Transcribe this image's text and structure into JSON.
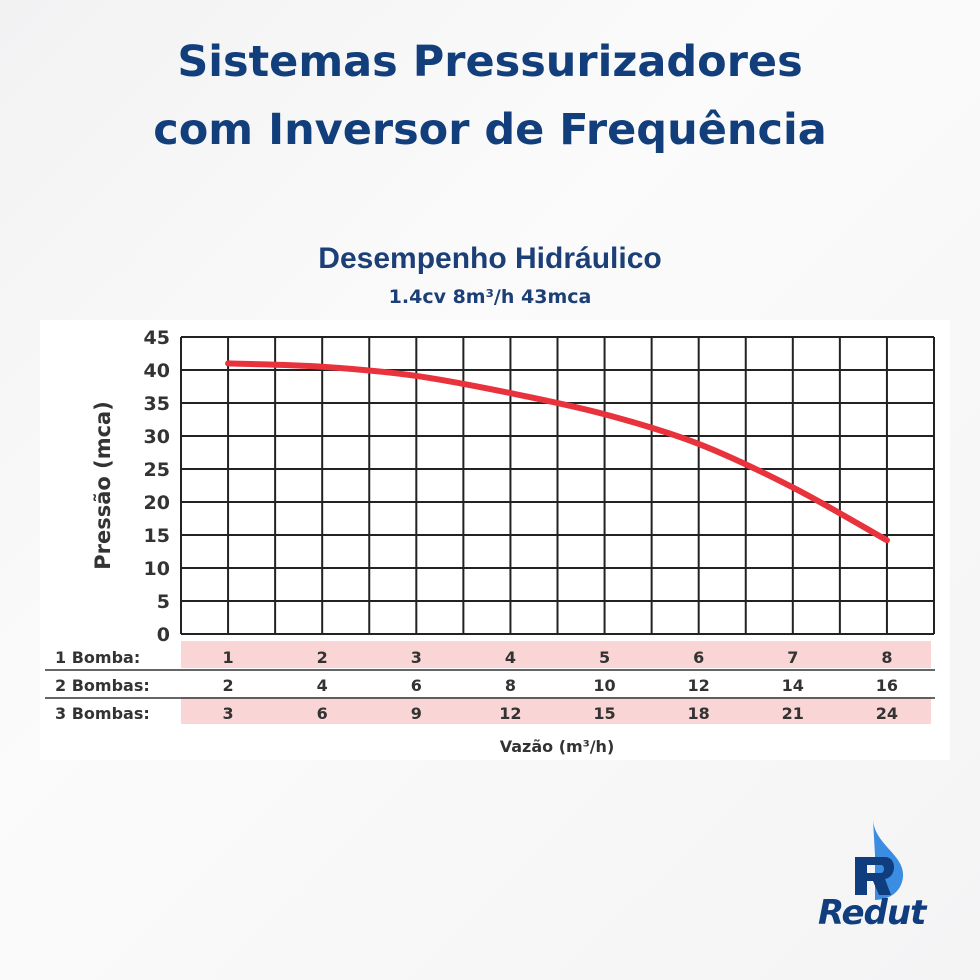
{
  "header": {
    "title_line1": "Sistemas Pressurizadores",
    "title_line2": "com Inversor de Frequência"
  },
  "chart_data": {
    "type": "line",
    "title": "Desempenho Hidráulico",
    "subtitle": "1.4cv 8m³/h 43mca",
    "ylabel": "Pressão (mca)",
    "xlabel": "Vazão (m³/h)",
    "ylim": [
      0,
      45
    ],
    "yticks": [
      "0",
      "5",
      "10",
      "15",
      "20",
      "25",
      "30",
      "35",
      "40",
      "45"
    ],
    "xlim": [
      0.5,
      8.5
    ],
    "grid": true,
    "x_rows": [
      {
        "label": "1 Bomba:",
        "values": [
          "1",
          "2",
          "3",
          "4",
          "5",
          "6",
          "7",
          "8"
        ]
      },
      {
        "label": "2 Bombas:",
        "values": [
          "2",
          "4",
          "6",
          "8",
          "10",
          "12",
          "14",
          "16"
        ]
      },
      {
        "label": "3 Bombas:",
        "values": [
          "3",
          "6",
          "9",
          "12",
          "15",
          "18",
          "21",
          "24"
        ]
      }
    ],
    "series": [
      {
        "x": [
          1,
          2,
          3,
          4,
          5,
          6,
          7,
          8
        ],
        "y": [
          41,
          40.5,
          39.1,
          36.5,
          33.3,
          28.8,
          22.2,
          14.2
        ],
        "color": "#e8323c"
      }
    ]
  },
  "brand": {
    "name": "Redut",
    "colors": {
      "primary": "#0f3d7e",
      "accent": "#3a8de0"
    }
  }
}
